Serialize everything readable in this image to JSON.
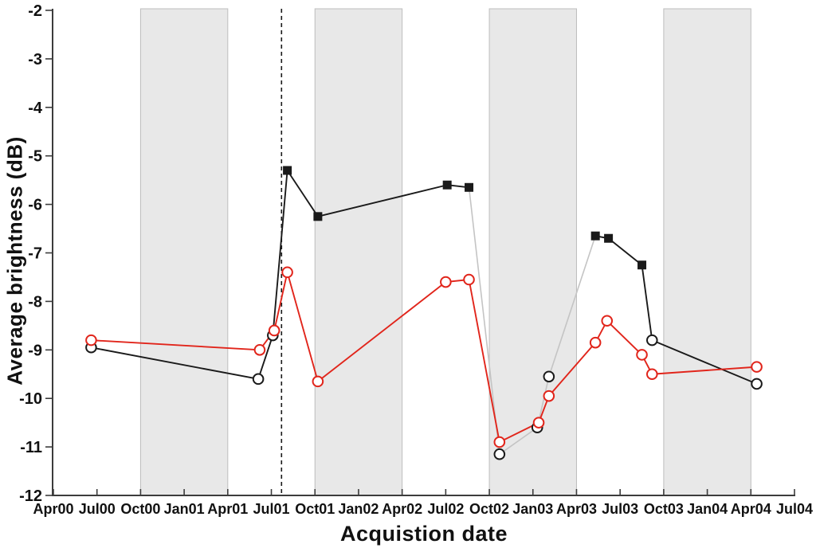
{
  "chart_data": {
    "type": "line",
    "title": "",
    "xlabel": "Acquistion date",
    "ylabel": "Average brightness (dB)",
    "x_unit": "months since Apr 2000",
    "xlim_months": [
      0,
      51
    ],
    "ylim": [
      -12,
      -2
    ],
    "y_ticks": [
      -2,
      -3,
      -4,
      -5,
      -6,
      -7,
      -8,
      -9,
      -10,
      -11,
      -12
    ],
    "x_tick_months": [
      0,
      3,
      6,
      9,
      12,
      15,
      18,
      21,
      24,
      27,
      30,
      33,
      36,
      39,
      42,
      45,
      48,
      51
    ],
    "x_tick_labels": [
      "Apr00",
      "Jul00",
      "Oct00",
      "Jan01",
      "Apr01",
      "Jul01",
      "Oct01",
      "Jan02",
      "Apr02",
      "Jul02",
      "Oct02",
      "Jan03",
      "Apr03",
      "Jul03",
      "Oct03",
      "Jan04",
      "Apr04",
      "Jul04"
    ],
    "grid": false,
    "legend": "none",
    "shaded_bands_months": [
      [
        6,
        12
      ],
      [
        18,
        24
      ],
      [
        30,
        36
      ],
      [
        42,
        48
      ]
    ],
    "dashed_vline_month": 15.7,
    "series": [
      {
        "name": "black series (filled squares / open circles)",
        "color": "#1a1a1a",
        "points": [
          {
            "m": 2.6,
            "v": -8.95,
            "marker": "open-circle"
          },
          {
            "m": 14.1,
            "v": -9.6,
            "marker": "open-circle"
          },
          {
            "m": 15.1,
            "v": -8.7,
            "marker": "open-circle"
          },
          {
            "m": 16.1,
            "v": -5.3,
            "marker": "filled-square"
          },
          {
            "m": 18.2,
            "v": -6.25,
            "marker": "filled-square"
          },
          {
            "m": 27.1,
            "v": -5.6,
            "marker": "filled-square"
          },
          {
            "m": 28.6,
            "v": -5.65,
            "marker": "filled-square"
          },
          {
            "m": 30.7,
            "v": -11.15,
            "marker": "open-circle"
          },
          {
            "m": 33.3,
            "v": -10.6,
            "marker": "open-circle"
          },
          {
            "m": 34.1,
            "v": -9.55,
            "marker": "open-circle"
          },
          {
            "m": 37.3,
            "v": -6.65,
            "marker": "filled-square"
          },
          {
            "m": 38.2,
            "v": -6.7,
            "marker": "filled-square"
          },
          {
            "m": 40.5,
            "v": -7.25,
            "marker": "filled-square"
          },
          {
            "m": 41.2,
            "v": -8.8,
            "marker": "open-circle"
          },
          {
            "m": 48.4,
            "v": -9.7,
            "marker": "open-circle"
          }
        ],
        "gray_segments_from_index": [
          6,
          7,
          8,
          9
        ]
      },
      {
        "name": "red series (open circles)",
        "color": "#e1251b",
        "points": [
          {
            "m": 2.6,
            "v": -8.8,
            "marker": "open-circle"
          },
          {
            "m": 14.2,
            "v": -9.0,
            "marker": "open-circle"
          },
          {
            "m": 15.2,
            "v": -8.6,
            "marker": "open-circle"
          },
          {
            "m": 16.1,
            "v": -7.4,
            "marker": "open-circle"
          },
          {
            "m": 18.2,
            "v": -9.65,
            "marker": "open-circle"
          },
          {
            "m": 27.0,
            "v": -7.6,
            "marker": "open-circle"
          },
          {
            "m": 28.6,
            "v": -7.55,
            "marker": "open-circle"
          },
          {
            "m": 30.7,
            "v": -10.9,
            "marker": "open-circle"
          },
          {
            "m": 33.4,
            "v": -10.5,
            "marker": "open-circle"
          },
          {
            "m": 34.1,
            "v": -9.95,
            "marker": "open-circle"
          },
          {
            "m": 37.3,
            "v": -8.85,
            "marker": "open-circle"
          },
          {
            "m": 38.1,
            "v": -8.4,
            "marker": "open-circle"
          },
          {
            "m": 40.5,
            "v": -9.1,
            "marker": "open-circle"
          },
          {
            "m": 41.2,
            "v": -9.5,
            "marker": "open-circle"
          },
          {
            "m": 48.4,
            "v": -9.35,
            "marker": "open-circle"
          }
        ]
      }
    ],
    "colors": {
      "black_series": "#1a1a1a",
      "red_series": "#e1251b",
      "gray_connector": "#c4c4c4",
      "band_fill": "#e8e8e8",
      "band_edge": "#bdbdbd",
      "axis": "#3c3c3c",
      "dashed_line": "#1a1a1a",
      "tick_text": "#111111"
    }
  }
}
